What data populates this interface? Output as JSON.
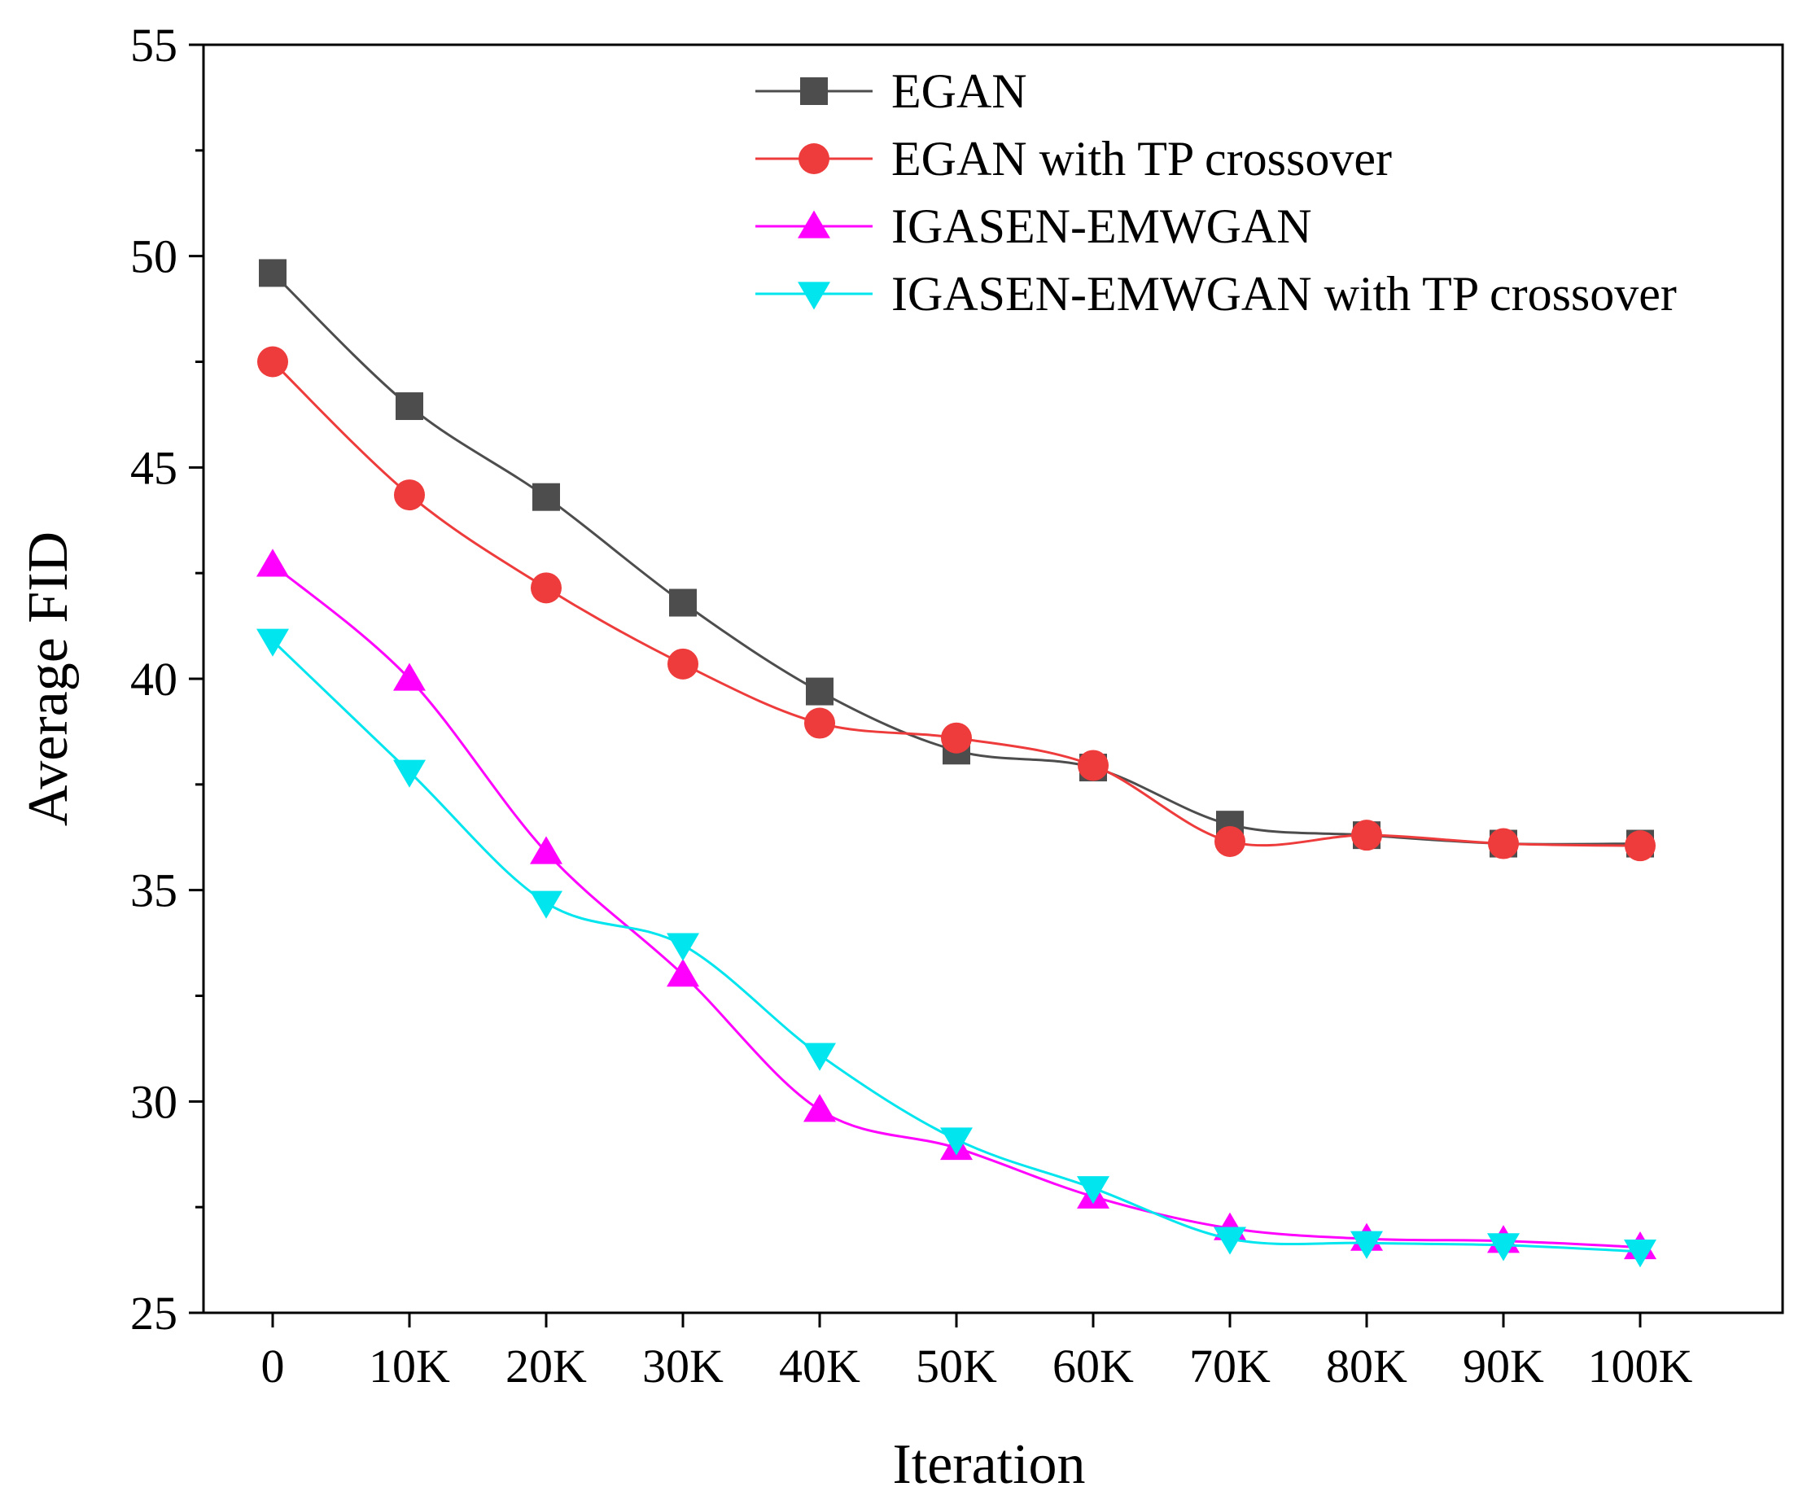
{
  "chart_data": {
    "type": "line",
    "title": "",
    "xlabel": "Iteration",
    "ylabel": "Average FID",
    "categories": [
      "0",
      "10K",
      "20K",
      "30K",
      "40K",
      "50K",
      "60K",
      "70K",
      "80K",
      "90K",
      "100K"
    ],
    "ylim": [
      25,
      55
    ],
    "yticks": [
      25,
      30,
      35,
      40,
      45,
      50,
      55
    ],
    "grid": false,
    "legend": "top-right",
    "series": [
      {
        "name": "EGAN",
        "color": "#4d4d4d",
        "marker": "square",
        "values": [
          49.6,
          46.45,
          44.3,
          41.8,
          39.7,
          38.3,
          37.9,
          36.55,
          36.3,
          36.1,
          36.1
        ]
      },
      {
        "name": "EGAN with TP crossover",
        "color": "#ee3b3b",
        "marker": "circle",
        "values": [
          47.5,
          44.35,
          42.15,
          40.35,
          38.95,
          38.6,
          37.95,
          36.15,
          36.3,
          36.1,
          36.05
        ]
      },
      {
        "name": "IGASEN-EMWGAN",
        "color": "#ff00ff",
        "marker": "triangle-up",
        "values": [
          42.7,
          40.0,
          35.9,
          33.0,
          29.8,
          28.9,
          27.75,
          27.0,
          26.75,
          26.7,
          26.55
        ]
      },
      {
        "name": "IGASEN-EMWGAN with TP crossover",
        "color": "#00e5ee",
        "marker": "triangle-down",
        "values": [
          40.9,
          37.8,
          34.7,
          33.7,
          31.1,
          29.1,
          27.95,
          26.75,
          26.65,
          26.6,
          26.45
        ]
      }
    ]
  }
}
